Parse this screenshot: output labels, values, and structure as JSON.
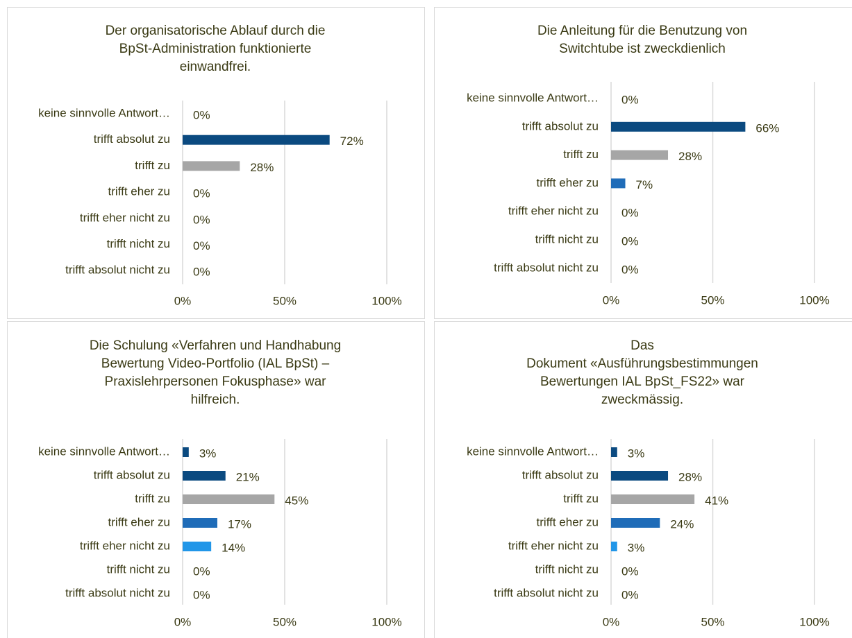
{
  "chart_data": [
    {
      "type": "bar",
      "orientation": "horizontal",
      "title": [
        "Der organisatorische Ablauf durch die",
        "BpSt-Administration  funktionierte",
        "einwandfrei."
      ],
      "categories": [
        "keine sinnvolle Antwort…",
        "trifft absolut zu",
        "trifft zu",
        "trifft eher zu",
        "trifft eher nicht zu",
        "trifft nicht zu",
        "trifft absolut nicht zu"
      ],
      "values": [
        0,
        72,
        28,
        0,
        0,
        0,
        0
      ],
      "value_labels": [
        "0%",
        "72%",
        "28%",
        "0%",
        "0%",
        "0%",
        "0%"
      ],
      "colors": [
        "#2196e8",
        "#0b4a80",
        "#a6a6a6",
        "#1f6cb8",
        "#2196e8",
        "#0b4a80",
        "#a6a6a6"
      ],
      "xlim": [
        0,
        100
      ],
      "xticks": [
        {
          "value": 0,
          "label": "0%"
        },
        {
          "value": 50,
          "label": "50%"
        },
        {
          "value": 100,
          "label": "100%"
        }
      ],
      "grid": true
    },
    {
      "type": "bar",
      "orientation": "horizontal",
      "title": [
        "Die Anleitung für die Benutzung von",
        "Switchtube ist zweckdienlich"
      ],
      "categories": [
        "keine sinnvolle Antwort…",
        "trifft absolut zu",
        "trifft zu",
        "trifft eher zu",
        "trifft eher nicht zu",
        "trifft nicht zu",
        "trifft absolut nicht zu"
      ],
      "values": [
        0,
        66,
        28,
        7,
        0,
        0,
        0
      ],
      "value_labels": [
        "0%",
        "66%",
        "28%",
        "7%",
        "0%",
        "0%",
        "0%"
      ],
      "colors": [
        "#0b4a80",
        "#0b4a80",
        "#a6a6a6",
        "#1f6cb8",
        "#2196e8",
        "#0b4a80",
        "#a6a6a6"
      ],
      "xlim": [
        0,
        100
      ],
      "xticks": [
        {
          "value": 0,
          "label": "0%"
        },
        {
          "value": 50,
          "label": "50%"
        },
        {
          "value": 100,
          "label": "100%"
        }
      ],
      "grid": true
    },
    {
      "type": "bar",
      "orientation": "horizontal",
      "title": [
        "Die Schulung «Verfahren und Handhabung",
        "Bewertung Video-Portfolio (IAL BpSt) –",
        "Praxislehrpersonen Fokusphase» war",
        "hilfreich."
      ],
      "categories": [
        "keine sinnvolle Antwort…",
        "trifft absolut zu",
        "trifft zu",
        "trifft eher zu",
        "trifft eher nicht zu",
        "trifft nicht zu",
        "trifft absolut nicht zu"
      ],
      "values": [
        3,
        21,
        45,
        17,
        14,
        0,
        0
      ],
      "value_labels": [
        "3%",
        "21%",
        "45%",
        "17%",
        "14%",
        "0%",
        "0%"
      ],
      "colors": [
        "#0b4a80",
        "#0b4a80",
        "#a6a6a6",
        "#1f6cb8",
        "#2196e8",
        "#0b4a80",
        "#a6a6a6"
      ],
      "xlim": [
        0,
        100
      ],
      "xticks": [
        {
          "value": 0,
          "label": "0%"
        },
        {
          "value": 50,
          "label": "50%"
        },
        {
          "value": 100,
          "label": "100%"
        }
      ],
      "grid": true
    },
    {
      "type": "bar",
      "orientation": "horizontal",
      "title": [
        "Das",
        "Dokument «Ausführungsbestimmungen",
        "Bewertungen IAL BpSt_FS22» war",
        "zweckmässig."
      ],
      "categories": [
        "keine sinnvolle Antwort…",
        "trifft absolut zu",
        "trifft zu",
        "trifft eher zu",
        "trifft eher nicht zu",
        "trifft nicht zu",
        "trifft absolut nicht zu"
      ],
      "values": [
        3,
        28,
        41,
        24,
        3,
        0,
        0
      ],
      "value_labels": [
        "3%",
        "28%",
        "41%",
        "24%",
        "3%",
        "0%",
        "0%"
      ],
      "colors": [
        "#0b4a80",
        "#0b4a80",
        "#a6a6a6",
        "#1f6cb8",
        "#2196e8",
        "#0b4a80",
        "#a6a6a6"
      ],
      "xlim": [
        0,
        100
      ],
      "xticks": [
        {
          "value": 0,
          "label": "0%"
        },
        {
          "value": 50,
          "label": "50%"
        },
        {
          "value": 100,
          "label": "100%"
        }
      ],
      "grid": true
    }
  ]
}
